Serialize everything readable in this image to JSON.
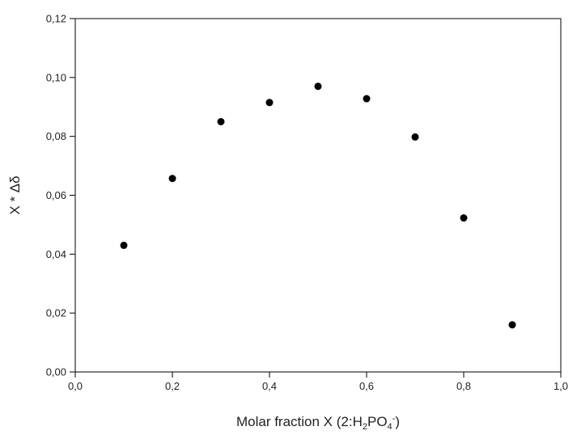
{
  "chart_data": {
    "type": "scatter",
    "x": [
      0.1,
      0.2,
      0.3,
      0.4,
      0.5,
      0.6,
      0.7,
      0.8,
      0.9
    ],
    "y": [
      0.043,
      0.0657,
      0.085,
      0.0915,
      0.097,
      0.0928,
      0.0798,
      0.0523,
      0.016
    ],
    "xlim": [
      0.0,
      1.0
    ],
    "ylim": [
      0.0,
      0.12
    ],
    "x_ticks": [
      "0,0",
      "0,2",
      "0,4",
      "0,6",
      "0,8",
      "1,0"
    ],
    "y_ticks": [
      "0,00",
      "0,02",
      "0,04",
      "0,06",
      "0,08",
      "0,10",
      "0,12"
    ],
    "xlabel": {
      "main": "Molar fraction X  (2:H",
      "sub1": "2",
      "mid": "PO",
      "sub2": "4",
      "sup": "-",
      "end": ")"
    },
    "ylabel": "X * Δδ",
    "grid": false,
    "marker_color": "#000000"
  }
}
